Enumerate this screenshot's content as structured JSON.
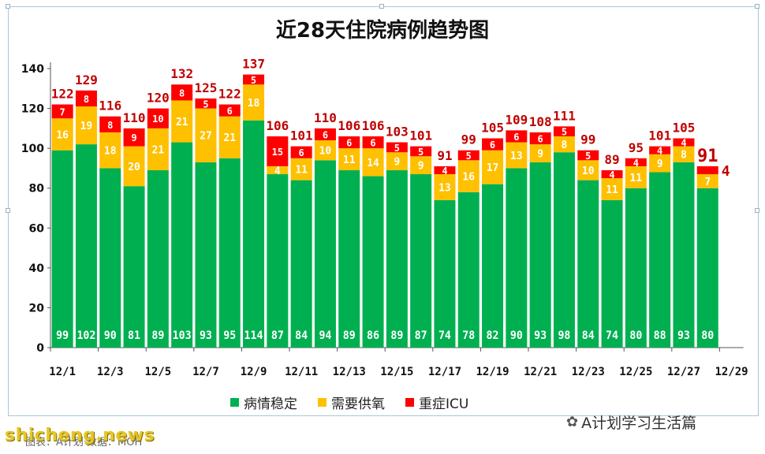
{
  "chart_data": {
    "type": "bar",
    "stacked": true,
    "title": "近28天住院病例趋势图",
    "categories": [
      "12/1",
      "12/2",
      "12/3",
      "12/4",
      "12/5",
      "12/6",
      "12/7",
      "12/8",
      "12/9",
      "12/10",
      "12/11",
      "12/12",
      "12/13",
      "12/14",
      "12/15",
      "12/16",
      "12/17",
      "12/18",
      "12/19",
      "12/20",
      "12/21",
      "12/22",
      "12/23",
      "12/24",
      "12/25",
      "12/26",
      "12/27",
      "12/28"
    ],
    "x_tick_labels": [
      "12/1",
      "12/3",
      "12/5",
      "12/7",
      "12/9",
      "12/11",
      "12/13",
      "12/15",
      "12/17",
      "12/19",
      "12/21",
      "12/23",
      "12/25",
      "12/27",
      "12/29"
    ],
    "series": [
      {
        "name": "病情稳定",
        "color": "#00b050",
        "values": [
          99,
          102,
          90,
          81,
          89,
          103,
          93,
          95,
          114,
          87,
          84,
          94,
          89,
          86,
          89,
          87,
          74,
          78,
          82,
          90,
          93,
          98,
          84,
          74,
          80,
          88,
          93,
          80
        ]
      },
      {
        "name": "需要供氧",
        "color": "#ffc000",
        "values": [
          16,
          19,
          18,
          20,
          21,
          21,
          27,
          21,
          18,
          4,
          11,
          10,
          11,
          14,
          9,
          9,
          13,
          16,
          17,
          13,
          9,
          8,
          10,
          11,
          11,
          9,
          8,
          7
        ]
      },
      {
        "name": "重症ICU",
        "color": "#ff0000",
        "values": [
          7,
          8,
          8,
          9,
          10,
          8,
          5,
          6,
          5,
          15,
          6,
          6,
          6,
          6,
          5,
          5,
          4,
          5,
          6,
          6,
          6,
          5,
          5,
          4,
          4,
          4,
          4,
          4
        ]
      }
    ],
    "totals": [
      122,
      129,
      116,
      110,
      120,
      132,
      125,
      122,
      137,
      106,
      101,
      110,
      106,
      106,
      103,
      101,
      91,
      99,
      105,
      109,
      108,
      111,
      99,
      89,
      95,
      101,
      105,
      91
    ],
    "yticks": [
      0,
      20,
      40,
      60,
      80,
      100,
      120,
      140
    ],
    "ylim": [
      0,
      140
    ],
    "grid": false,
    "legend_position": "bottom"
  },
  "watermark": {
    "account": "A计划学习生活篇",
    "site": "shicheng.news",
    "credit": "图表：A计划·数据：MOH"
  }
}
